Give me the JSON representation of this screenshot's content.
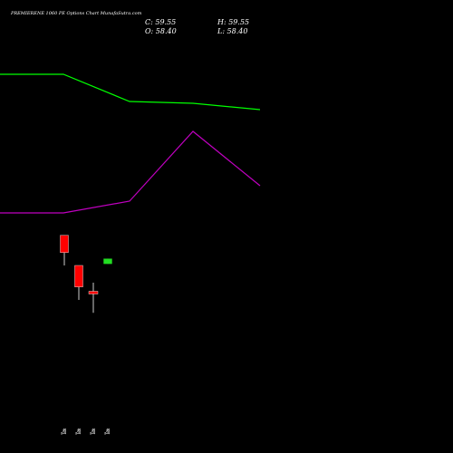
{
  "header": {
    "title": "PREMIERENE 1060 PE Options Chart MunafaSutra.com",
    "close": "C: 59.55",
    "high": "H: 59.55",
    "open": "O: 58.40",
    "low": "L: 58.40"
  },
  "colors": {
    "background": "#000000",
    "green_line": "#00ff00",
    "purple_line": "#c000c0",
    "bear_candle": "#ff0000",
    "bull_candle": "#22dd22",
    "wick": "#ffffff"
  },
  "chart_data": {
    "type": "candlestick",
    "title": "PREMIERENE 1060 PE Options Chart MunafaSutra.com",
    "x_labels": [
      "ब्लू",
      "ब्लू",
      "ब्लू",
      "ब्लू"
    ],
    "series": [
      {
        "style": "line",
        "color": "#00ff00",
        "points": [
          82,
          82,
          112,
          114,
          121
        ]
      },
      {
        "style": "line",
        "color": "#c000c0",
        "points": [
          235,
          235,
          222,
          145,
          205
        ]
      }
    ],
    "candles": [
      {
        "open": 65.0,
        "high": 65.0,
        "low": 58.0,
        "close": 61.0,
        "color": "red"
      },
      {
        "open": 58.0,
        "high": 58.0,
        "low": 50.0,
        "close": 53.0,
        "color": "red"
      },
      {
        "open": 52.0,
        "high": 54.0,
        "low": 47.0,
        "close": 51.5,
        "color": "red"
      },
      {
        "open": 58.4,
        "high": 59.55,
        "low": 58.4,
        "close": 59.55,
        "color": "green"
      }
    ]
  }
}
